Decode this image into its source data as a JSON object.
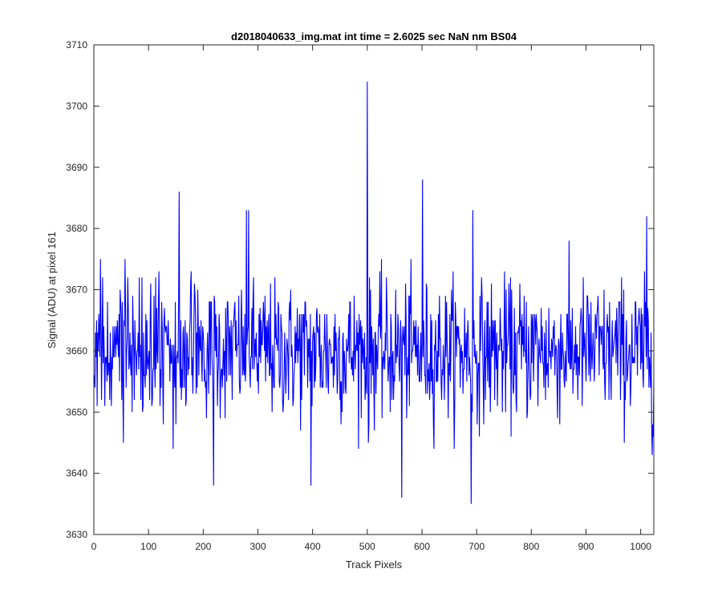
{
  "chart_data": {
    "type": "line",
    "title": "d2018040633_img.mat int time = 2.6025 sec  NaN nm BS04",
    "xlabel": "Track Pixels",
    "ylabel": "Signal (ADU) at pixel 161",
    "xlim": [
      0,
      1024
    ],
    "ylim": [
      3630,
      3710
    ],
    "xticks": [
      "0",
      "100",
      "200",
      "300",
      "400",
      "500",
      "600",
      "700",
      "800",
      "900",
      "1000"
    ],
    "yticks": [
      "3630",
      "3640",
      "3650",
      "3660",
      "3670",
      "3680",
      "3690",
      "3700",
      "3710"
    ],
    "grid": false,
    "legend": "none",
    "series": [
      {
        "color": "#0000ff",
        "noise_center": 3660,
        "noise_sd": 5.5,
        "n_points": 1024,
        "x_start": 1,
        "peaks": [
          {
            "x": 156,
            "y": 3686
          },
          {
            "x": 219,
            "y": 3638
          },
          {
            "x": 279,
            "y": 3683
          },
          {
            "x": 283,
            "y": 3683
          },
          {
            "x": 397,
            "y": 3638
          },
          {
            "x": 500,
            "y": 3704
          },
          {
            "x": 502,
            "y": 3645
          },
          {
            "x": 563,
            "y": 3636
          },
          {
            "x": 601,
            "y": 3688
          },
          {
            "x": 690,
            "y": 3635
          },
          {
            "x": 693,
            "y": 3683
          },
          {
            "x": 1011,
            "y": 3682
          },
          {
            "x": 1021,
            "y": 3643
          }
        ]
      }
    ]
  }
}
